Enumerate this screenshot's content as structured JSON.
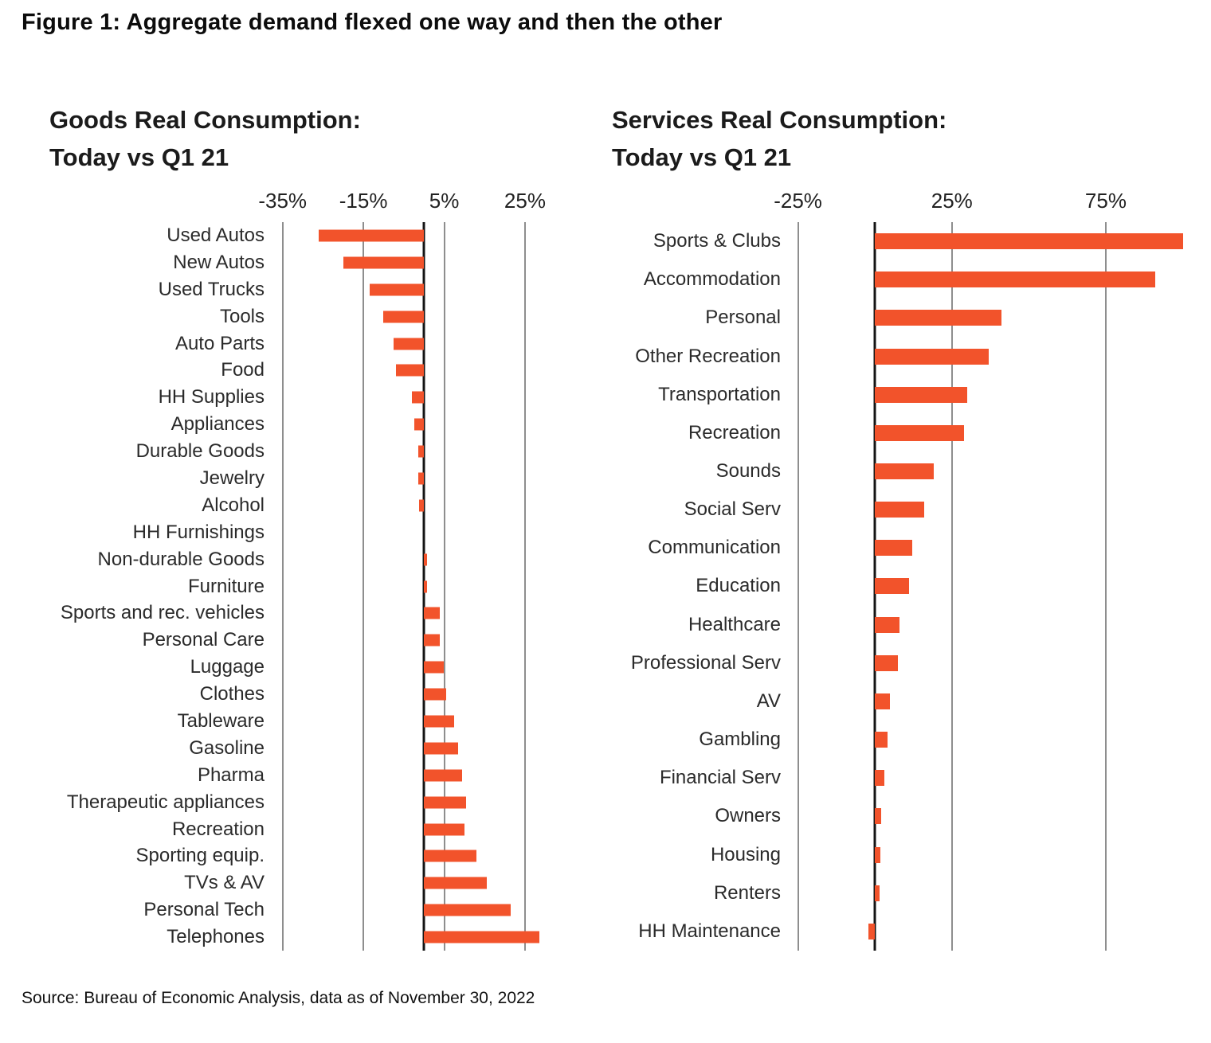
{
  "figure": {
    "title": "Figure 1: Aggregate demand flexed one way and then the other",
    "source": "Source: Bureau of Economic Analysis, data as of November 30, 2022"
  },
  "style": {
    "bar_color": "#F2532B",
    "grid_color": "#8E8E8E",
    "zero_line_color": "#141414",
    "title_color": "#0C0C0C",
    "label_color": "#2B2B2B"
  },
  "chart_data": [
    {
      "type": "bar",
      "orientation": "horizontal",
      "title": "Goods Real Consumption:\nToday vs Q1 21",
      "unit": "%",
      "grid": true,
      "legend": "none",
      "axis": {
        "min": -37.5,
        "max": 32.5,
        "ticks": [
          -35,
          -15,
          5,
          25
        ],
        "tick_labels": [
          "-35%",
          "-15%",
          "5%",
          "25%"
        ],
        "zero_line": true
      },
      "categories": [
        "Used Autos",
        "New Autos",
        "Used Trucks",
        "Tools",
        "Auto Parts",
        "Food",
        "HH Supplies",
        "Appliances",
        "Durable Goods",
        "Jewelry",
        "Alcohol",
        "HH Furnishings",
        "Non-durable Goods",
        "Furniture",
        "Sports and rec. vehicles",
        "Personal Care",
        "Luggage",
        "Clothes",
        "Tableware",
        "Gasoline",
        "Pharma",
        "Therapeutic appliances",
        "Recreation",
        "Sporting equip.",
        "TVs & AV",
        "Personal Tech",
        "Telephones"
      ],
      "values": [
        -26,
        -20,
        -13.5,
        -10,
        -7.5,
        -7,
        -3,
        -2.5,
        -1.5,
        -1.4,
        -1.2,
        0,
        0.8,
        0.7,
        4,
        4,
        4.8,
        5.5,
        7.5,
        8.5,
        9.5,
        10.5,
        10,
        13,
        15.5,
        21.5,
        28.5
      ]
    },
    {
      "type": "bar",
      "orientation": "horizontal",
      "title": "Services Real Consumption:\nToday vs Q1 21",
      "unit": "%",
      "grid": true,
      "legend": "none",
      "axis": {
        "min": -28,
        "max": 104,
        "ticks": [
          -25,
          25,
          75
        ],
        "tick_labels": [
          "-25%",
          "25%",
          "75%"
        ],
        "zero_line": true
      },
      "categories": [
        "Sports & Clubs",
        "Accommodation",
        "Personal",
        "Other Recreation",
        "Transportation",
        "Recreation",
        "Sounds",
        "Social Serv",
        "Communication",
        "Education",
        "Healthcare",
        "Professional Serv",
        "AV",
        "Gambling",
        "Financial Serv",
        "Owners",
        "Housing",
        "Renters",
        "HH Maintenance"
      ],
      "values": [
        100,
        91,
        41,
        37,
        30,
        29,
        19,
        16,
        12,
        11,
        8,
        7.5,
        5,
        4,
        3,
        2,
        1.8,
        1.5,
        -2
      ]
    }
  ]
}
